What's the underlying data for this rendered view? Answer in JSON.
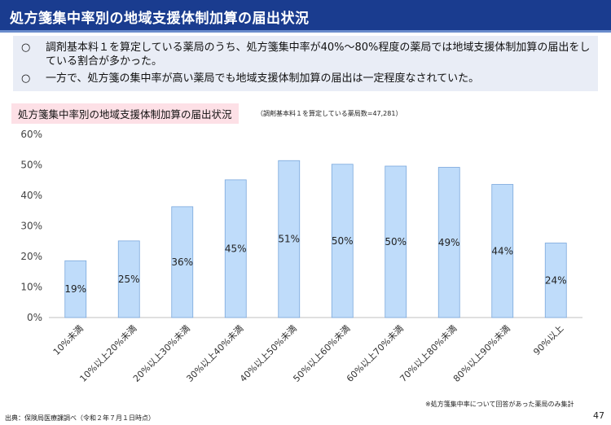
{
  "header": {
    "title": "処方箋集中率別の地域支援体制加算の届出状況"
  },
  "notes": [
    {
      "mark": "○",
      "text": "調剤基本料１を算定している薬局のうち、処方箋集中率が40%～80%程度の薬局では地域支援体制加算の届出をしている割合が多かった。"
    },
    {
      "mark": "○",
      "text": "一方で、処方箋の集中率が高い薬局でも地域支援体制加算の届出は一定程度なされていた。"
    }
  ],
  "chart_title": "処方箋集中率別の地域支援体制加算の届出状況",
  "chart_subtitle": "（調剤基本料１を算定している薬局数=47,281）",
  "footnote": "※処方箋集中率について回答があった薬局のみ集計",
  "source": "出典：保険局医療課調べ（令和２年７月１日時点）",
  "page_number": "47",
  "colors": {
    "header_bg": "#1a3c8f",
    "bar_fill": "#bfdcfa",
    "bar_stroke": "#7aa7dc",
    "title_bg": "#fde0e6"
  },
  "chart_data": {
    "type": "bar",
    "title": "処方箋集中率別の地域支援体制加算の届出状況",
    "xlabel": "",
    "ylabel": "",
    "ylim": [
      0,
      60
    ],
    "yticks": [
      0,
      10,
      20,
      30,
      40,
      50,
      60
    ],
    "ytick_labels": [
      "0%",
      "10%",
      "20%",
      "30%",
      "40%",
      "50%",
      "60%"
    ],
    "categories": [
      "10%未満",
      "10%以上20%未満",
      "20%以上30%未満",
      "30%以上40%未満",
      "40%以上50%未満",
      "50%以上60%未満",
      "60%以上70%未満",
      "70%以上80%未満",
      "80%以上90%未満",
      "90%以上"
    ],
    "values": [
      18.6,
      25.1,
      36.3,
      45.1,
      51.4,
      50.2,
      49.6,
      49.2,
      43.6,
      24.4
    ],
    "data_labels": [
      "19%",
      "25%",
      "36%",
      "45%",
      "51%",
      "50%",
      "50%",
      "49%",
      "44%",
      "24%"
    ],
    "grid": false
  }
}
